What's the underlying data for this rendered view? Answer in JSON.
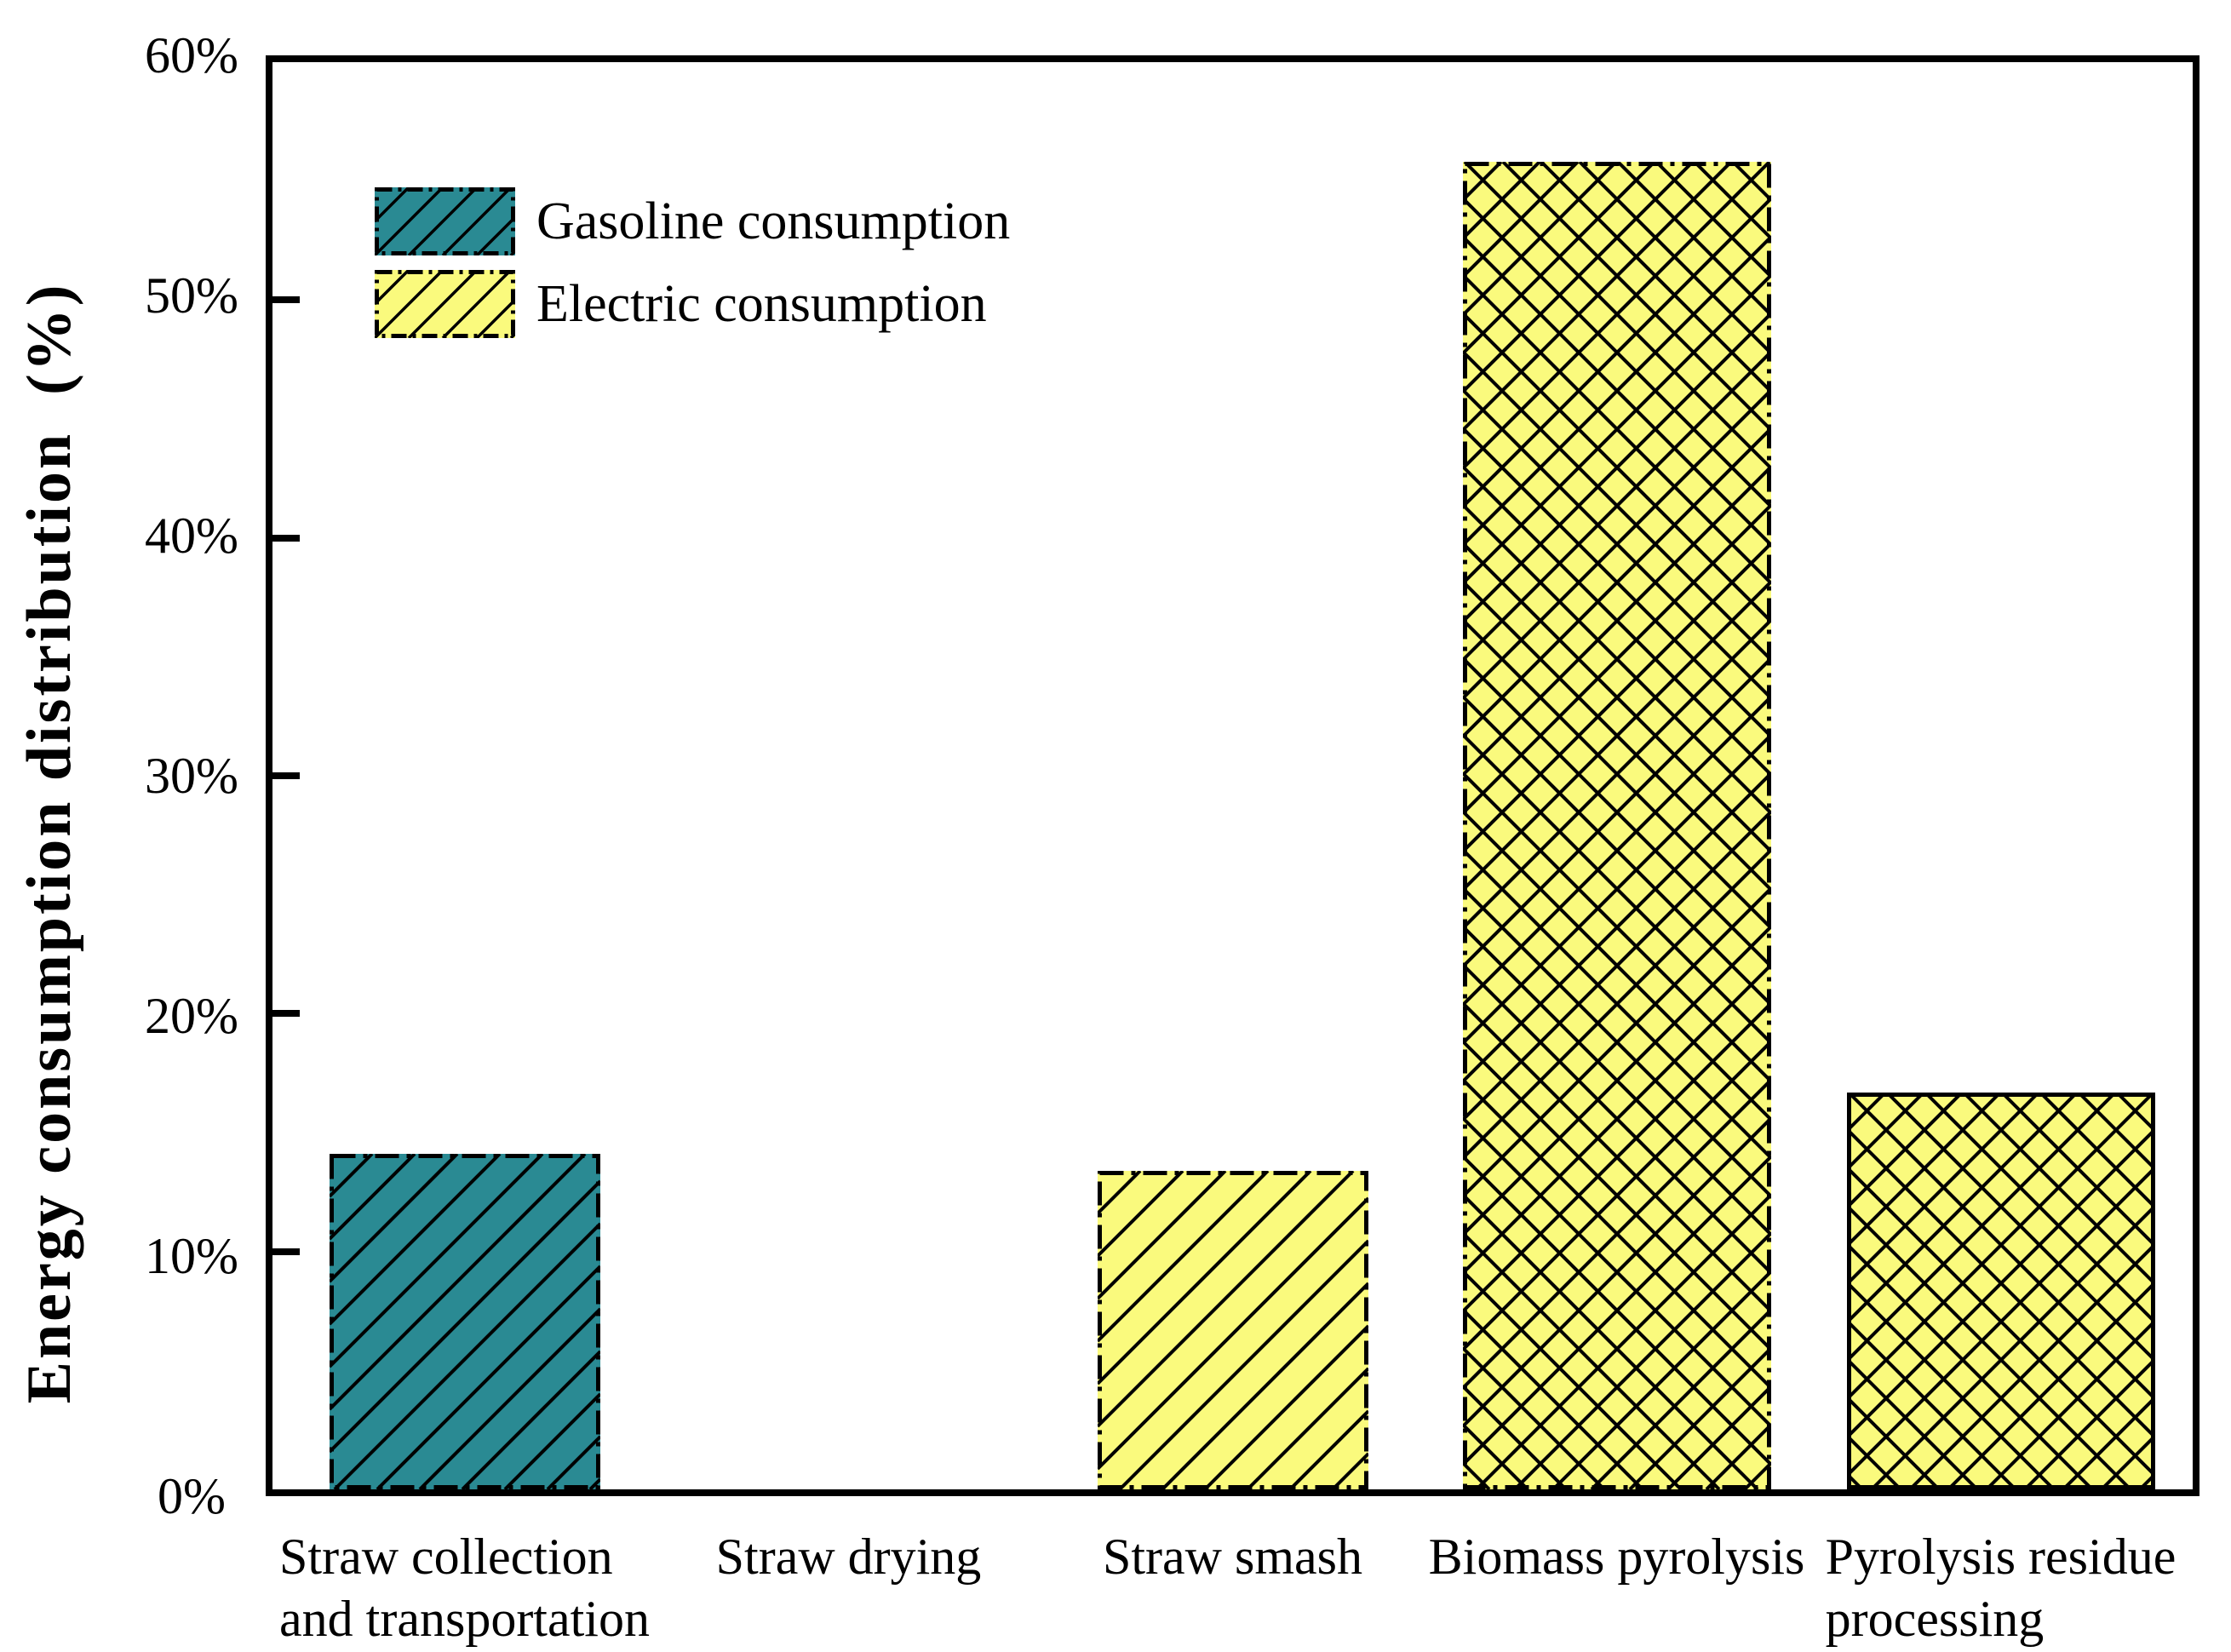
{
  "chart_data": {
    "type": "bar",
    "title": "",
    "xlabel": "",
    "ylabel": "Energy consumption distribution  (%)",
    "ylim": [
      0,
      60
    ],
    "ytick_labels": [
      "0%",
      "10%",
      "20%",
      "30%",
      "40%",
      "50%",
      "60%"
    ],
    "grid": false,
    "plot_border": "box",
    "axis_color": "#000000",
    "background_color": "#FFFFFF",
    "legend": {
      "position": "upper-left-inside",
      "entries": [
        {
          "label": "Gasoline consumption",
          "color": "#2A8A93",
          "hatch": "diagonal",
          "border": "dash-dot"
        },
        {
          "label": "Electric consumption",
          "color": "#FAFA7D",
          "hatch": "diagonal",
          "border": "dash-dot"
        }
      ]
    },
    "categories": [
      "Straw collection\nand transportation",
      "Straw drying",
      "Straw smash",
      "Biomass pyrolysis",
      "Pyrolysis residue\nprocessing"
    ],
    "bars": [
      {
        "category": "Straw collection and transportation",
        "series": "Gasoline consumption",
        "value": 14.1,
        "color": "#2A8A93",
        "hatch": "diagonal",
        "border": "dash-dot"
      },
      {
        "category": "Straw drying",
        "series": "Electric consumption",
        "value": 0,
        "color": "#FAFA7D",
        "hatch": "none",
        "border": "none"
      },
      {
        "category": "Straw smash",
        "series": "Electric consumption",
        "value": 13.4,
        "color": "#FAFA7D",
        "hatch": "diagonal",
        "border": "dash-dot"
      },
      {
        "category": "Biomass pyrolysis",
        "series": "Electric consumption",
        "value": 55.8,
        "color": "#FAFA7D",
        "hatch": "cross",
        "border": "dash-dot"
      },
      {
        "category": "Pyrolysis residue processing",
        "series": "Electric consumption",
        "value": 16.7,
        "color": "#FAFA7D",
        "hatch": "cross",
        "border": "solid"
      }
    ]
  }
}
